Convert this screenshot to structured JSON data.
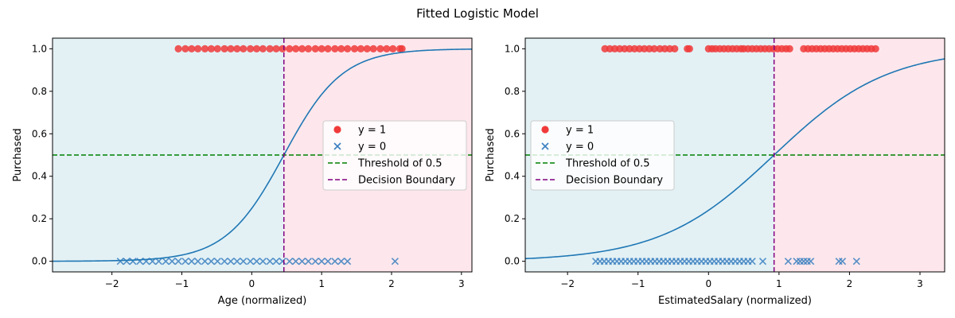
{
  "figure": {
    "title": "Fitted Logistic Model"
  },
  "colors": {
    "left_region": "#e3f1f5",
    "right_region": "#fde7ec",
    "pos_points": "#f03a3a",
    "neg_points": "#3a7fc0",
    "curve": "#1f77b4",
    "threshold": "#008000",
    "boundary": "#800080"
  },
  "chart_data": [
    {
      "type": "scatter",
      "title": "",
      "xlabel": "Age (normalized)",
      "ylabel": "Purchased",
      "xlim": [
        -2.85,
        3.15
      ],
      "ylim": [
        -0.05,
        1.05
      ],
      "xticks": [
        -2,
        -1,
        0,
        1,
        2,
        3
      ],
      "yticks": [
        0.0,
        0.2,
        0.4,
        0.6,
        0.8,
        1.0
      ],
      "tick_labels_x": [
        "−2",
        "−1",
        "0",
        "1",
        "2",
        "3"
      ],
      "tick_labels_y": [
        "0.0",
        "0.2",
        "0.4",
        "0.6",
        "0.8",
        "1.0"
      ],
      "legend_position": "center-right",
      "legend": [
        "y = 1",
        "y = 0",
        "Threshold of 0.5",
        "Decision Boundary"
      ],
      "threshold": 0.5,
      "decision_boundary": 0.46,
      "logistic_curve": {
        "slope": 2.4,
        "midpoint": 0.46
      },
      "series": [
        {
          "name": "y = 1",
          "marker": "circle",
          "y": 1,
          "x": [
            -1.05,
            -0.95,
            -0.86,
            -0.77,
            -0.67,
            -0.58,
            -0.49,
            -0.39,
            -0.3,
            -0.21,
            -0.12,
            -0.02,
            0.07,
            0.16,
            0.26,
            0.35,
            0.44,
            0.54,
            0.63,
            0.72,
            0.81,
            0.91,
            1.0,
            1.09,
            1.19,
            1.28,
            1.37,
            1.47,
            1.56,
            1.65,
            1.74,
            1.84,
            1.93,
            2.02,
            2.12,
            2.15
          ]
        },
        {
          "name": "y = 0",
          "marker": "x",
          "y": 0,
          "x": [
            -1.88,
            -1.79,
            -1.7,
            -1.6,
            -1.51,
            -1.42,
            -1.33,
            -1.23,
            -1.14,
            -1.05,
            -0.95,
            -0.86,
            -0.77,
            -0.67,
            -0.58,
            -0.49,
            -0.39,
            -0.3,
            -0.21,
            -0.12,
            -0.02,
            0.07,
            0.16,
            0.26,
            0.35,
            0.44,
            0.54,
            0.63,
            0.72,
            0.81,
            0.91,
            1.0,
            1.09,
            1.19,
            1.28,
            1.37,
            2.05
          ]
        }
      ]
    },
    {
      "type": "scatter",
      "title": "",
      "xlabel": "EstimatedSalary (normalized)",
      "ylabel": "Purchased",
      "xlim": [
        -2.6,
        3.35
      ],
      "ylim": [
        -0.05,
        1.05
      ],
      "xticks": [
        -2,
        -1,
        0,
        1,
        2,
        3
      ],
      "yticks": [
        0.0,
        0.2,
        0.4,
        0.6,
        0.8,
        1.0
      ],
      "tick_labels_x": [
        "−2",
        "−1",
        "0",
        "1",
        "2",
        "3"
      ],
      "tick_labels_y": [
        "0.0",
        "0.2",
        "0.4",
        "0.6",
        "0.8",
        "1.0"
      ],
      "legend_position": "center-left",
      "legend": [
        "y = 1",
        "y = 0",
        "Threshold of 0.5",
        "Decision Boundary"
      ],
      "threshold": 0.5,
      "decision_boundary": 0.93,
      "logistic_curve": {
        "slope": 1.24,
        "midpoint": 0.93
      },
      "series": [
        {
          "name": "y = 1",
          "marker": "circle",
          "y": 1,
          "x": [
            -1.47,
            -1.4,
            -1.33,
            -1.26,
            -1.19,
            -1.12,
            -1.05,
            -0.98,
            -0.91,
            -0.84,
            -0.77,
            -0.69,
            -0.62,
            -0.55,
            -0.48,
            -0.3,
            -0.27,
            0.0,
            0.05,
            0.1,
            0.16,
            0.22,
            0.28,
            0.34,
            0.4,
            0.46,
            0.5,
            0.56,
            0.62,
            0.68,
            0.74,
            0.8,
            0.86,
            0.92,
            0.98,
            1.04,
            1.1,
            1.15,
            1.35,
            1.41,
            1.47,
            1.53,
            1.59,
            1.65,
            1.71,
            1.77,
            1.83,
            1.89,
            1.95,
            2.01,
            2.07,
            2.13,
            2.19,
            2.25,
            2.31,
            2.37
          ]
        },
        {
          "name": "y = 0",
          "marker": "x",
          "y": 0,
          "x": [
            -1.6,
            -1.54,
            -1.48,
            -1.42,
            -1.36,
            -1.3,
            -1.24,
            -1.18,
            -1.12,
            -1.06,
            -1.0,
            -0.94,
            -0.88,
            -0.82,
            -0.76,
            -0.7,
            -0.64,
            -0.58,
            -0.52,
            -0.46,
            -0.4,
            -0.34,
            -0.28,
            -0.22,
            -0.16,
            -0.1,
            -0.04,
            0.02,
            0.08,
            0.14,
            0.2,
            0.26,
            0.32,
            0.38,
            0.44,
            0.5,
            0.56,
            0.62,
            0.77,
            1.13,
            1.25,
            1.3,
            1.35,
            1.4,
            1.45,
            1.85,
            1.9,
            2.1
          ]
        }
      ]
    }
  ]
}
